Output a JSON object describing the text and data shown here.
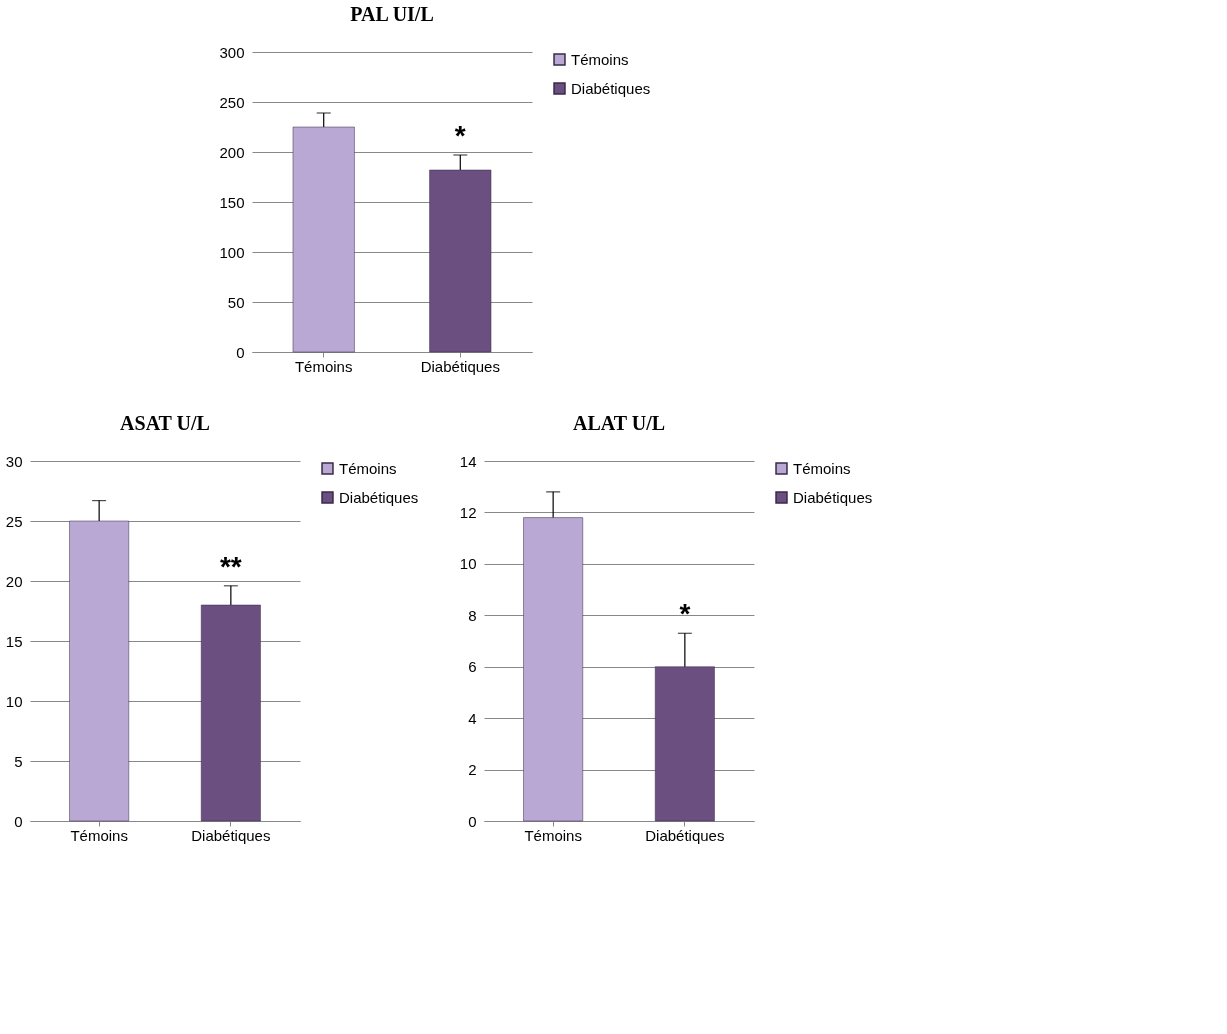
{
  "chart_data": [
    {
      "type": "bar",
      "title": "PAL UI/L",
      "categories": [
        "Témoins",
        "Diabétiques"
      ],
      "ylim": [
        0,
        300
      ],
      "yticks": [
        0,
        50,
        100,
        150,
        200,
        250,
        300
      ],
      "grid": "y",
      "legend": "right",
      "series": [
        {
          "name": "Témoins",
          "color": "#b9a8d3",
          "values": [
            225,
            null
          ],
          "errors": [
            14,
            null
          ]
        },
        {
          "name": "Diabétiques",
          "color": "#6a4f80",
          "values": [
            null,
            182
          ],
          "errors": [
            null,
            15
          ]
        }
      ],
      "annotations": [
        {
          "text": "*",
          "x": "Diabétiques",
          "y": 197
        }
      ]
    },
    {
      "type": "bar",
      "title": "ASAT U/L",
      "categories": [
        "Témoins",
        "Diabétiques"
      ],
      "ylim": [
        0,
        30
      ],
      "yticks": [
        0,
        5,
        10,
        15,
        20,
        25,
        30
      ],
      "grid": "y",
      "legend": "right",
      "series": [
        {
          "name": "Témoins",
          "color": "#b9a8d3",
          "values": [
            25,
            null
          ],
          "errors": [
            1.7,
            null
          ]
        },
        {
          "name": "Diabétiques",
          "color": "#6a4f80",
          "values": [
            null,
            18
          ],
          "errors": [
            null,
            1.6
          ]
        }
      ],
      "annotations": [
        {
          "text": "**",
          "x": "Diabétiques",
          "y": 19.6
        }
      ]
    },
    {
      "type": "bar",
      "title": "ALAT U/L",
      "categories": [
        "Témoins",
        "Diabétiques"
      ],
      "ylim": [
        0,
        14
      ],
      "yticks": [
        0,
        2,
        4,
        6,
        8,
        10,
        12,
        14
      ],
      "grid": "y",
      "legend": "right",
      "series": [
        {
          "name": "Témoins",
          "color": "#b9a8d3",
          "values": [
            11.8,
            null
          ],
          "errors": [
            1.0,
            null
          ]
        },
        {
          "name": "Diabétiques",
          "color": "#6a4f80",
          "values": [
            null,
            6.0
          ],
          "errors": [
            null,
            1.3
          ]
        }
      ],
      "annotations": [
        {
          "text": "*",
          "x": "Diabétiques",
          "y": 7.3
        }
      ]
    }
  ]
}
